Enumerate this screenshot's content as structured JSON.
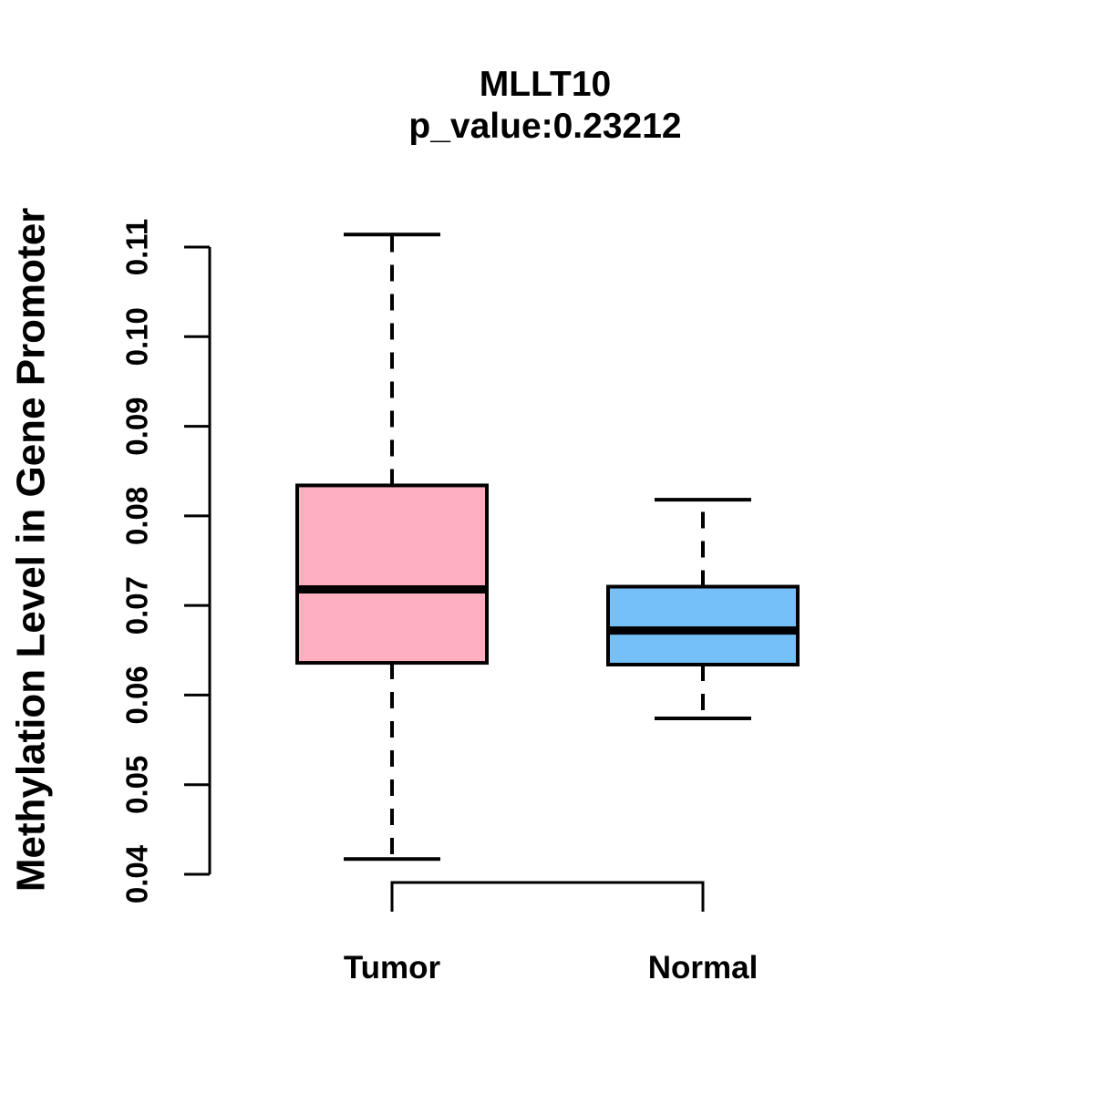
{
  "figure": {
    "background": "#ffffff",
    "stroke_color": "#000000"
  },
  "chart_data": {
    "type": "boxplot",
    "title": "MLLT10",
    "subtitle": "p_value:0.23212",
    "p_value": 0.23212,
    "gene": "MLLT10",
    "ylabel": "Methylation Level in Gene Promoter",
    "xlabel": "",
    "categories": [
      "Tumor",
      "Normal"
    ],
    "series": [
      {
        "name": "Tumor",
        "fill_color": "#ffafc0",
        "whisker_low": 0.0417,
        "q1": 0.0636,
        "median": 0.0718,
        "q3": 0.0834,
        "whisker_high": 0.1114
      },
      {
        "name": "Normal",
        "fill_color": "#74c0f7",
        "whisker_low": 0.0574,
        "q1": 0.0634,
        "median": 0.0672,
        "q3": 0.0721,
        "whisker_high": 0.0818
      }
    ],
    "ylim": [
      0.04,
      0.11
    ],
    "yticks": [
      0.04,
      0.05,
      0.06,
      0.07,
      0.08,
      0.09,
      0.1,
      0.11
    ],
    "ytick_labels": [
      "0.04",
      "0.05",
      "0.06",
      "0.07",
      "0.08",
      "0.09",
      "0.10",
      "0.11"
    ],
    "grid": false,
    "legend": "none",
    "whisker_style": "dashed"
  }
}
